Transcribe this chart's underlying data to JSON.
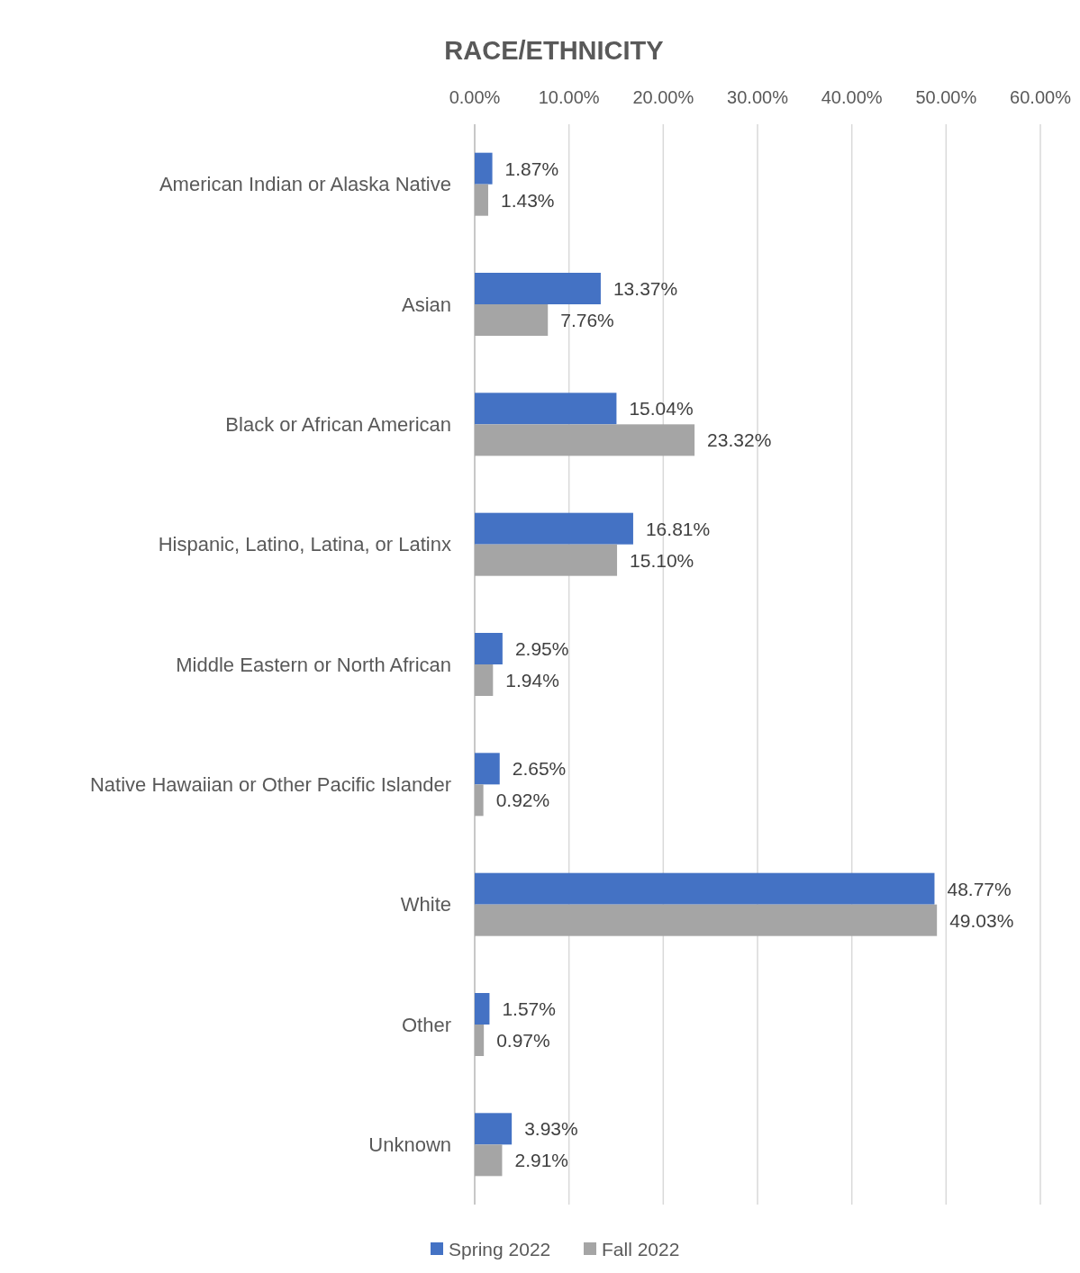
{
  "chart_data": {
    "type": "bar",
    "orientation": "horizontal",
    "title": "RACE/ETHNICITY",
    "categories": [
      "American Indian or Alaska Native",
      "Asian",
      "Black or African American",
      "Hispanic, Latino, Latina, or Latinx",
      "Middle Eastern or North African",
      "Native Hawaiian or Other Pacific Islander",
      "White",
      "Other",
      "Unknown"
    ],
    "series": [
      {
        "name": "Spring 2022",
        "color": "#4472c4",
        "values": [
          1.87,
          13.37,
          15.04,
          16.81,
          2.95,
          2.65,
          48.77,
          1.57,
          3.93
        ],
        "value_labels": [
          "1.87%",
          "13.37%",
          "15.04%",
          "16.81%",
          "2.95%",
          "2.65%",
          "48.77%",
          "1.57%",
          "3.93%"
        ]
      },
      {
        "name": "Fall 2022",
        "color": "#a5a5a5",
        "values": [
          1.43,
          7.76,
          23.32,
          15.1,
          1.94,
          0.92,
          49.03,
          0.97,
          2.91
        ],
        "value_labels": [
          "1.43%",
          "7.76%",
          "23.32%",
          "15.10%",
          "1.94%",
          "0.92%",
          "49.03%",
          "0.97%",
          "2.91%"
        ]
      }
    ],
    "xlim": [
      0,
      60
    ],
    "xticks": [
      {
        "value": 0,
        "label": "0.00%"
      },
      {
        "value": 10,
        "label": "10.00%"
      },
      {
        "value": 20,
        "label": "20.00%"
      },
      {
        "value": 30,
        "label": "30.00%"
      },
      {
        "value": 40,
        "label": "40.00%"
      },
      {
        "value": 50,
        "label": "50.00%"
      },
      {
        "value": 60,
        "label": "60.00%"
      }
    ],
    "grid": "x",
    "legend": "bottom"
  }
}
